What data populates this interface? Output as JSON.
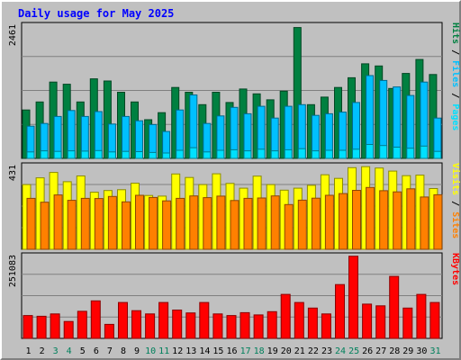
{
  "chart_data": {
    "type": "bar",
    "title": "Daily usage for May 2025",
    "categories": [
      "1",
      "2",
      "3",
      "4",
      "5",
      "6",
      "7",
      "8",
      "9",
      "10",
      "11",
      "12",
      "13",
      "14",
      "15",
      "16",
      "17",
      "18",
      "19",
      "20",
      "21",
      "22",
      "23",
      "24",
      "25",
      "26",
      "27",
      "28",
      "29",
      "30",
      "31"
    ],
    "weekend_days": [
      "3",
      "4",
      "10",
      "11",
      "17",
      "18",
      "24",
      "25",
      "31"
    ],
    "panels": [
      {
        "name": "requests",
        "ymax": 2461,
        "ymax_label": "2461",
        "series": [
          {
            "name": "Hits",
            "color": "#008040",
            "values": [
              900,
              1050,
              1420,
              1380,
              1050,
              1480,
              1440,
              1230,
              1050,
              720,
              850,
              1320,
              1230,
              1000,
              1230,
              1040,
              1290,
              1200,
              1090,
              1250,
              2435,
              1000,
              1140,
              1320,
              1500,
              1760,
              1720,
              1300,
              1580,
              1840,
              1560
            ]
          },
          {
            "name": "Files",
            "color": "#00c0ff",
            "values": [
              600,
              650,
              780,
              890,
              780,
              870,
              640,
              780,
              700,
              630,
              500,
              900,
              1180,
              650,
              790,
              950,
              830,
              970,
              750,
              970,
              1000,
              800,
              830,
              860,
              1040,
              1540,
              1450,
              1330,
              1170,
              1420,
              750
            ]
          },
          {
            "name": "Pages",
            "color": "#00e0ff",
            "values": [
              120,
              140,
              130,
              140,
              135,
              145,
              120,
              130,
              125,
              110,
              100,
              150,
              200,
              120,
              150,
              160,
              140,
              170,
              140,
              160,
              180,
              140,
              150,
              150,
              170,
              260,
              240,
              210,
              190,
              230,
              130
            ]
          }
        ],
        "legend": [
          "Pages",
          "Files",
          "Hits"
        ]
      },
      {
        "name": "visitors",
        "ymax": 431,
        "ymax_label": "431",
        "series": [
          {
            "name": "Visits",
            "color": "#ffff00",
            "values": [
              337,
              372,
              400,
              352,
              382,
              297,
              306,
              310,
              344,
              280,
              277,
              392,
              374,
              337,
              393,
              343,
              318,
              381,
              337,
              308,
              318,
              333,
              388,
              369,
              425,
              430,
              423,
              407,
              383,
              386,
              316
            ]
          },
          {
            "name": "Sites",
            "color": "#ff8000",
            "values": [
              265,
              245,
              283,
              255,
              265,
              264,
              275,
              247,
              281,
              270,
              252,
              265,
              278,
              269,
              277,
              254,
              265,
              267,
              278,
              233,
              256,
              266,
              281,
              290,
              307,
              322,
              305,
              299,
              315,
              272,
              284
            ]
          }
        ],
        "legend": [
          "Sites",
          "Visits"
        ]
      },
      {
        "name": "kbytes",
        "ymax": 251083,
        "ymax_label": "251083",
        "series": [
          {
            "name": "KBytes",
            "color": "#ff0000",
            "values": [
              70000,
              68000,
              75000,
              52000,
              83000,
              115000,
              43000,
              110000,
              85000,
              75000,
              110000,
              87000,
              78000,
              110000,
              75000,
              70000,
              79000,
              72000,
              82000,
              135000,
              110000,
              93000,
              75000,
              165000,
              252000,
              105000,
              100000,
              190000,
              93000,
              135000,
              110000
            ]
          }
        ],
        "legend": [
          "KBytes"
        ]
      }
    ]
  },
  "colors": {
    "background": "#c0c0c0",
    "title": "#0000ff",
    "weekday_label": "#000000",
    "weekend_label": "#00805c",
    "legend_separator": "#000000"
  }
}
